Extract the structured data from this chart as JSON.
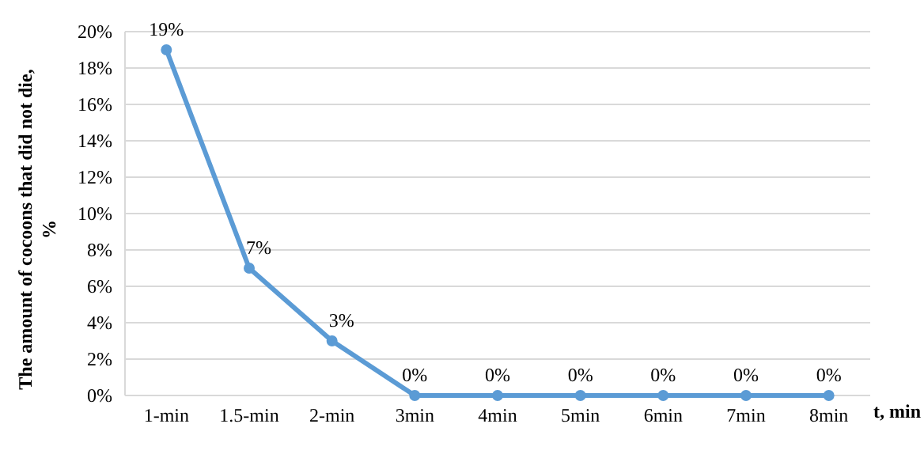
{
  "chart_data": {
    "type": "line",
    "xlabel": "t, min",
    "ylabel": "The amount  of cocoons that did not die, %",
    "categories": [
      "1-min",
      "1.5-min",
      "2-min",
      "3min",
      "4min",
      "5min",
      "6min",
      "7min",
      "8min"
    ],
    "series": [
      {
        "color": "#5b9bd5",
        "values": [
          19,
          7,
          3,
          0,
          0,
          0,
          0,
          0,
          0
        ],
        "value_labels": [
          "19%",
          "7%",
          "3%",
          "0%",
          "0%",
          "0%",
          "0%",
          "0%",
          "0%"
        ]
      }
    ],
    "ylim": [
      0,
      20
    ],
    "yticks": [
      {
        "value": 0,
        "label": "0%"
      },
      {
        "value": 2,
        "label": "2%"
      },
      {
        "value": 4,
        "label": "4%"
      },
      {
        "value": 6,
        "label": "6%"
      },
      {
        "value": 8,
        "label": "8%"
      },
      {
        "value": 10,
        "label": "10%"
      },
      {
        "value": 12,
        "label": "12%"
      },
      {
        "value": 14,
        "label": "14%"
      },
      {
        "value": 16,
        "label": "16%"
      },
      {
        "value": 18,
        "label": "18%"
      },
      {
        "value": 20,
        "label": "20%"
      }
    ],
    "grid": "y",
    "marker": "circle",
    "line_style": "solid"
  }
}
